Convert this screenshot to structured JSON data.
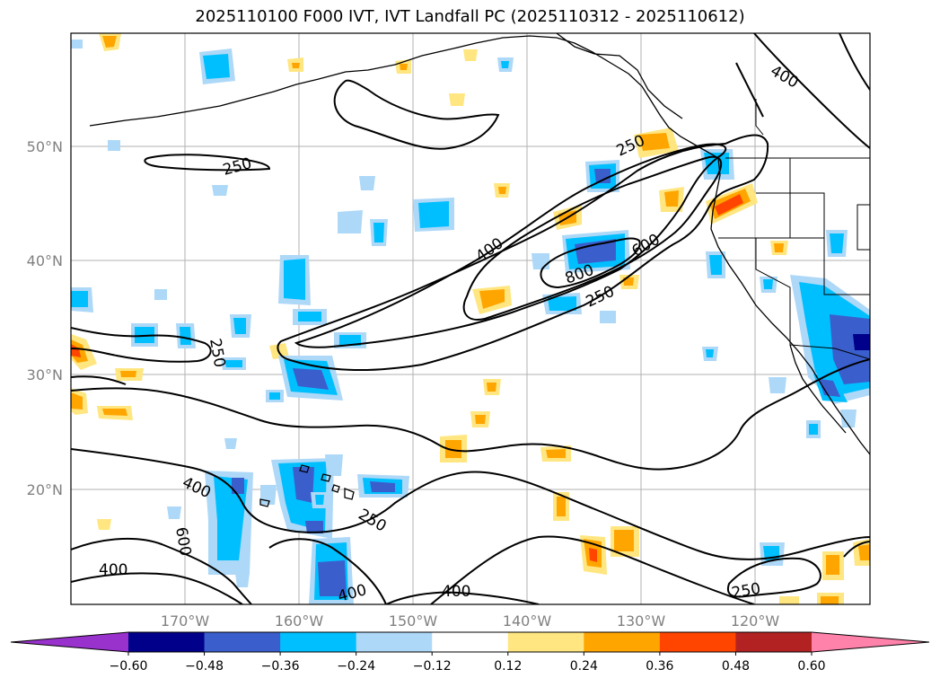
{
  "title": "2025110100 F000 IVT, IVT Landfall PC (2025110312 - 2025110612)",
  "lon_labels": [
    "170°W",
    "160°W",
    "150°W",
    "140°W",
    "130°W",
    "120°W"
  ],
  "lat_labels": [
    "50°N",
    "40°N",
    "30°N",
    "20°N"
  ],
  "contour_labels": [
    "250",
    "250",
    "250",
    "250",
    "250",
    "250",
    "400",
    "400",
    "400",
    "400",
    "400",
    "600",
    "600",
    "800"
  ],
  "colorbar": {
    "ticks": [
      "−0.60",
      "−0.48",
      "−0.36",
      "−0.24",
      "−0.12",
      "0.12",
      "0.24",
      "0.36",
      "0.48",
      "0.60"
    ],
    "colors": [
      "#9932cc",
      "#00008b",
      "#3a5fcd",
      "#00bfff",
      "#add8f7",
      "#ffffff",
      "#ffe680",
      "#ffa500",
      "#ff4500",
      "#b22222",
      "#ff82ab"
    ]
  },
  "colors": {
    "neg_strong": "#3a5fcd",
    "neg_mid": "#00bfff",
    "neg_weak": "#add8f7",
    "pos_weak": "#ffe680",
    "pos_mid": "#ffa500",
    "pos_strong": "#ff4500"
  }
}
